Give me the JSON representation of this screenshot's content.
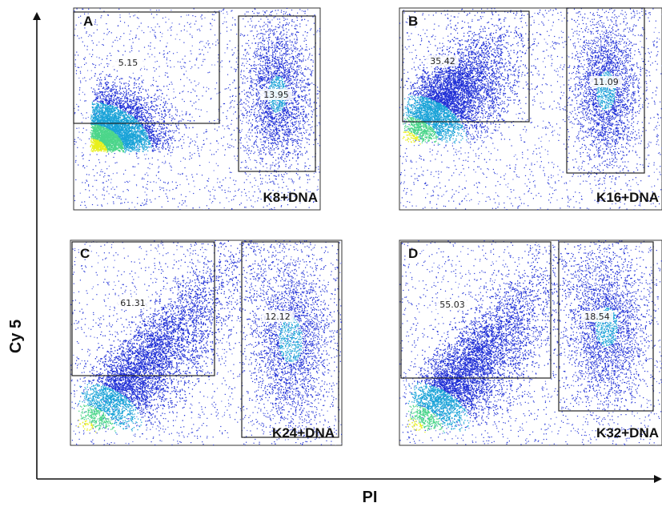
{
  "chart_data": {
    "type": "scatter",
    "xlabel": "PI",
    "ylabel": "Cy 5",
    "panels": [
      {
        "letter": "A",
        "label": "K8+DNA",
        "gates": [
          "5.15",
          "13.95"
        ]
      },
      {
        "letter": "B",
        "label": "K16+DNA",
        "gates": [
          "35.42",
          "11.09"
        ]
      },
      {
        "letter": "C",
        "label": "K24+DNA",
        "gates": [
          "61.31",
          "12.12"
        ]
      },
      {
        "letter": "D",
        "label": "K32+DNA",
        "gates": [
          "55.03",
          "18.54"
        ]
      }
    ]
  },
  "colors": {
    "density_low": "#1f2fd6",
    "density_mid": "#1aa3d8",
    "density_high": "#e8f01c",
    "axis": "#111111"
  }
}
